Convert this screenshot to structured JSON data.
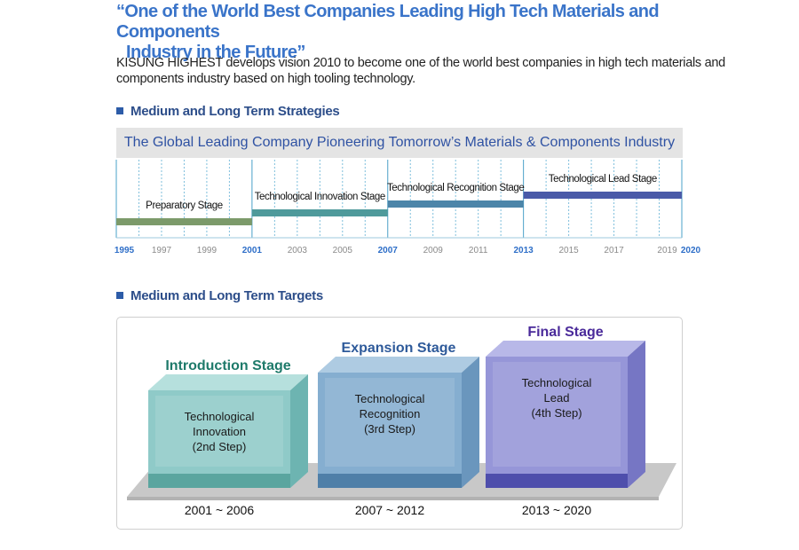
{
  "headline": {
    "line1": "“One of the World Best Companies Leading High Tech Materials and Components",
    "line2": "Industry in the Future”"
  },
  "intro_text": "KISUNG HIGHEST develops vision 2010 to become one of the world best companies in high tech materials and components industry based on high tooling technology.",
  "strategies": {
    "section_title": "Medium and Long Term Strategies",
    "banner": "The Global Leading Company Pioneering Tomorrow’s Materials & Components Industry",
    "year_labels": [
      "1995",
      "1997",
      "1999",
      "2001",
      "2003",
      "2005",
      "2007",
      "2009",
      "2011",
      "2013",
      "2015",
      "2017",
      "2019",
      "2020"
    ],
    "highlight_years": [
      "1995",
      "2001",
      "2007",
      "2013",
      "2020"
    ],
    "stages": [
      {
        "label": "Preparatory Stage",
        "start": 1995,
        "end": 2001,
        "level": 1,
        "color": "#7c9a6a"
      },
      {
        "label": "Technological Innovation Stage",
        "start": 2001,
        "end": 2007,
        "level": 2,
        "color": "#4f9a9b"
      },
      {
        "label": "Technological Recognition Stage",
        "start": 2007,
        "end": 2013,
        "level": 3,
        "color": "#4c85a9"
      },
      {
        "label": "Technological Lead Stage",
        "start": 2013,
        "end": 2020,
        "level": 4,
        "color": "#4a5aa8"
      }
    ]
  },
  "targets": {
    "section_title": "Medium and Long Term Targets",
    "blocks": [
      {
        "title": "Introduction Stage",
        "title_color": "#1e7a6a",
        "lines": [
          "Technological",
          "Innovation",
          "(2nd Step)"
        ],
        "period": "2001 ~ 2006",
        "front": "#8fcac8",
        "top": "#b6e0dd",
        "side": "#6db4b1",
        "bottom": "#5aa59f"
      },
      {
        "title": "Expansion Stage",
        "title_color": "#2e5a9a",
        "lines": [
          "Technological",
          "Recognition",
          "(3rd Step)"
        ],
        "period": "2007 ~ 2012",
        "front": "#85aed0",
        "top": "#aecbe2",
        "side": "#6a96bd",
        "bottom": "#4f7fa8"
      },
      {
        "title": "Final Stage",
        "title_color": "#4a2a9a",
        "lines": [
          "Technological",
          "Lead",
          "(4th Step)"
        ],
        "period": "2013 ~ 2020",
        "front": "#9696d8",
        "top": "#b8b8e8",
        "side": "#7676c4",
        "bottom": "#4e4eac"
      }
    ]
  }
}
